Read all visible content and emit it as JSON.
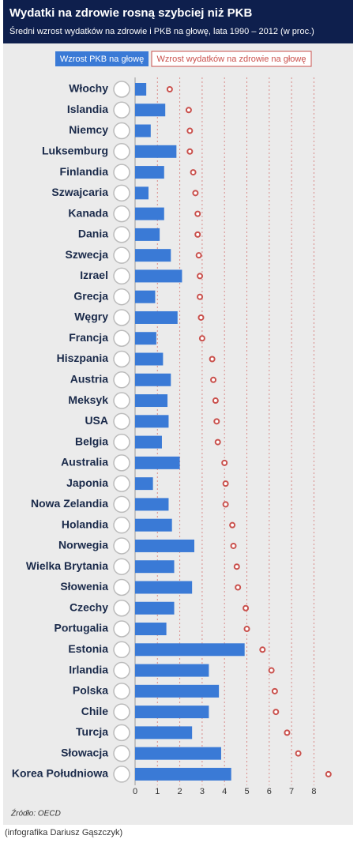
{
  "chart_data": {
    "type": "bar_dot",
    "title": "Wydatki na zdrowie rosną szybciej niż PKB",
    "subtitle": "Średni wzrost wydatków na zdrowie i PKB na głowę, lata 1990 – 2012 (w proc.)",
    "source": "Źródło: OECD",
    "credit": "(infografika Dariusz Gąszczyk)",
    "categories": [
      "Włochy",
      "Islandia",
      "Niemcy",
      "Luksemburg",
      "Finlandia",
      "Szwajcaria",
      "Kanada",
      "Dania",
      "Szwecja",
      "Izrael",
      "Grecja",
      "Węgry",
      "Francja",
      "Hiszpania",
      "Austria",
      "Meksyk",
      "USA",
      "Belgia",
      "Australia",
      "Japonia",
      "Nowa Zelandia",
      "Holandia",
      "Norwegia",
      "Wielka Brytania",
      "Słowenia",
      "Czechy",
      "Portugalia",
      "Estonia",
      "Irlandia",
      "Polska",
      "Chile",
      "Turcja",
      "Słowacja",
      "Korea Południowa"
    ],
    "series": [
      {
        "name": "Wzrost PKB na głowę",
        "color": "#3a7ad6",
        "values": [
          0.5,
          1.35,
          0.7,
          1.85,
          1.3,
          0.6,
          1.3,
          1.1,
          1.6,
          2.1,
          0.9,
          1.9,
          0.95,
          1.25,
          1.6,
          1.45,
          1.5,
          1.2,
          2.0,
          0.8,
          1.5,
          1.65,
          2.65,
          1.75,
          2.55,
          1.75,
          1.4,
          4.9,
          3.3,
          3.75,
          3.3,
          2.55,
          3.85,
          4.3
        ]
      },
      {
        "name": "Wzrost wydatków na zdrowie na głowę",
        "color": "#c9504c",
        "values": [
          1.55,
          2.4,
          2.45,
          2.45,
          2.6,
          2.7,
          2.8,
          2.8,
          2.85,
          2.9,
          2.9,
          2.95,
          3.0,
          3.45,
          3.5,
          3.6,
          3.65,
          3.7,
          4.0,
          4.05,
          4.05,
          4.35,
          4.4,
          4.55,
          4.6,
          4.95,
          5.0,
          5.7,
          6.1,
          6.25,
          6.3,
          6.8,
          7.3,
          8.65
        ]
      }
    ],
    "xlim": [
      0,
      9
    ],
    "xticks": [
      0,
      1,
      2,
      3,
      4,
      5,
      6,
      7,
      8
    ],
    "grid": true
  }
}
